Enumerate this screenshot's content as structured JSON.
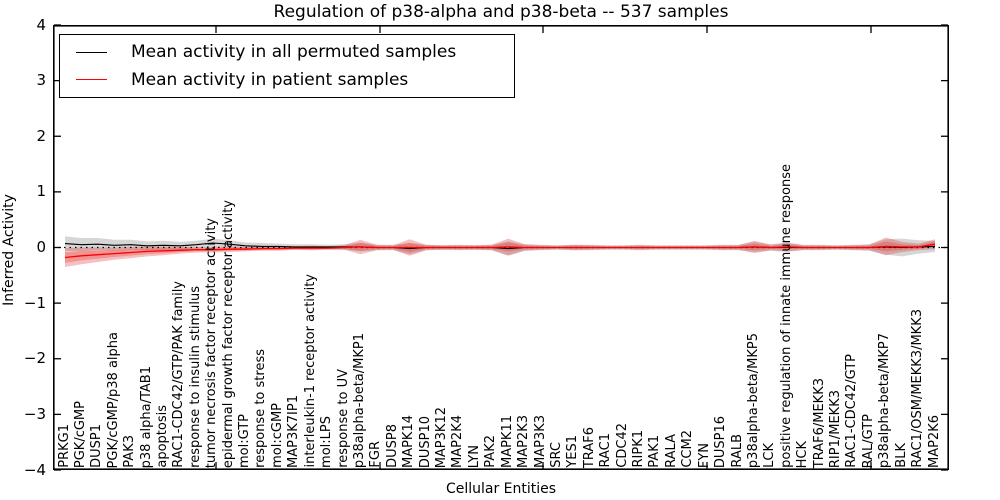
{
  "figure": {
    "title": "Regulation of p38-alpha and p38-beta -- 537 samples"
  },
  "legend": {
    "items": [
      {
        "label": "Mean activity in all permuted samples",
        "color": "#000000"
      },
      {
        "label": "Mean activity in patient samples",
        "color": "#ff0000"
      }
    ]
  },
  "axes": {
    "xlabel": "Cellular Entities",
    "ylabel": "Inferred Activity",
    "ytick_labels": [
      "4",
      "3",
      "2",
      "1",
      "0",
      "−1",
      "−2",
      "−3",
      "−4"
    ]
  },
  "chart_data": {
    "type": "line",
    "title": "Regulation of p38-alpha and p38-beta -- 537 samples",
    "xlabel": "Cellular Entities",
    "ylabel": "Inferred Activity",
    "ylim": [
      -4,
      4
    ],
    "yticks": [
      4,
      3,
      2,
      1,
      0,
      -1,
      -2,
      -3,
      -4
    ],
    "grid": false,
    "legend_position": "upper left",
    "zero_reference_line": 0,
    "categories": [
      "PRKG1",
      "PGK/cGMP",
      "DUSP1",
      "PGK/cGMP/p38 alpha",
      "PAK3",
      "p38 alpha/TAB1",
      "apoptosis",
      "RAC1-CDC42/GTP/PAK family",
      "response to insulin stimulus",
      "tumor necrosis factor receptor activity",
      "epidermal growth factor receptor activity",
      "mol:GTP",
      "response to stress",
      "mol:cGMP",
      "MAP3K7IP1",
      "interleukin-1 receptor activity",
      "mol:LPS",
      "response to UV",
      "p38alpha-beta/MKP1",
      "FGR",
      "DUSP8",
      "MAPK14",
      "DUSP10",
      "MAP3K12",
      "MAP2K4",
      "LYN",
      "PAK2",
      "MAPK11",
      "MAP2K3",
      "MAP3K3",
      "SRC",
      "YES1",
      "TRAF6",
      "RAC1",
      "CDC42",
      "RIPK1",
      "PAK1",
      "RALA",
      "CCM2",
      "FYN",
      "DUSP16",
      "RALB",
      "p38alpha-beta/MKP5",
      "LCK",
      "positive regulation of innate immune response",
      "HCK",
      "TRAF6/MEKK3",
      "RIP1/MEKK3",
      "RAC1-CDC42/GTP",
      "RAL/GTP",
      "p38alpha-beta/MKP7",
      "BLK",
      "RAC1/OSM/MEKK3/MKK3",
      "MAP2K6"
    ],
    "series": [
      {
        "name": "Mean activity in all permuted samples",
        "color": "#000000",
        "band_color": "#000000",
        "band_opacity": 0.16,
        "values": [
          0.07,
          0.05,
          0.06,
          0.04,
          0.05,
          0.03,
          0.04,
          0.03,
          0.05,
          0.08,
          0.06,
          0.03,
          0.02,
          0.02,
          0.01,
          0.01,
          0.01,
          0.01,
          0.01,
          0.0,
          0.0,
          -0.02,
          0.0,
          0.0,
          0.0,
          0.0,
          0.0,
          -0.02,
          0.0,
          0.0,
          0.0,
          0.0,
          0.0,
          0.0,
          0.0,
          0.0,
          0.0,
          0.0,
          0.0,
          0.0,
          0.0,
          0.0,
          0.01,
          0.0,
          0.0,
          0.0,
          0.0,
          0.0,
          0.0,
          0.0,
          0.01,
          0.0,
          0.01,
          0.02
        ],
        "band_halfwidth": [
          0.13,
          0.12,
          0.11,
          0.1,
          0.09,
          0.08,
          0.08,
          0.07,
          0.07,
          0.08,
          0.07,
          0.06,
          0.06,
          0.05,
          0.05,
          0.05,
          0.04,
          0.05,
          0.08,
          0.05,
          0.05,
          0.1,
          0.05,
          0.04,
          0.05,
          0.04,
          0.05,
          0.13,
          0.06,
          0.05,
          0.04,
          0.05,
          0.05,
          0.04,
          0.04,
          0.05,
          0.04,
          0.04,
          0.04,
          0.04,
          0.05,
          0.05,
          0.09,
          0.06,
          0.08,
          0.05,
          0.05,
          0.04,
          0.05,
          0.06,
          0.14,
          0.16,
          0.12,
          0.1
        ]
      },
      {
        "name": "Mean activity in patient samples",
        "color": "#ff0000",
        "band_color": "#e03030",
        "band_opacity": 0.3,
        "values": [
          -0.18,
          -0.15,
          -0.13,
          -0.11,
          -0.09,
          -0.07,
          -0.06,
          -0.05,
          -0.04,
          -0.04,
          -0.03,
          -0.03,
          -0.02,
          -0.02,
          -0.01,
          -0.01,
          -0.01,
          0.0,
          0.01,
          0.0,
          0.0,
          0.0,
          0.0,
          0.0,
          0.0,
          0.0,
          0.0,
          0.01,
          0.0,
          0.0,
          0.0,
          0.0,
          0.0,
          0.0,
          0.0,
          0.0,
          0.0,
          0.0,
          0.0,
          0.0,
          0.0,
          0.0,
          0.01,
          0.0,
          0.01,
          0.0,
          0.0,
          0.0,
          0.0,
          0.0,
          0.02,
          0.01,
          0.01,
          0.06
        ],
        "band_halfwidth": [
          0.17,
          0.15,
          0.13,
          0.11,
          0.1,
          0.09,
          0.08,
          0.06,
          0.05,
          0.05,
          0.05,
          0.04,
          0.04,
          0.04,
          0.03,
          0.04,
          0.03,
          0.04,
          0.13,
          0.05,
          0.04,
          0.15,
          0.05,
          0.04,
          0.04,
          0.04,
          0.05,
          0.15,
          0.06,
          0.04,
          0.03,
          0.05,
          0.04,
          0.03,
          0.03,
          0.04,
          0.03,
          0.03,
          0.03,
          0.03,
          0.04,
          0.04,
          0.11,
          0.05,
          0.08,
          0.04,
          0.04,
          0.03,
          0.04,
          0.05,
          0.16,
          0.09,
          0.06,
          0.09
        ]
      }
    ]
  }
}
